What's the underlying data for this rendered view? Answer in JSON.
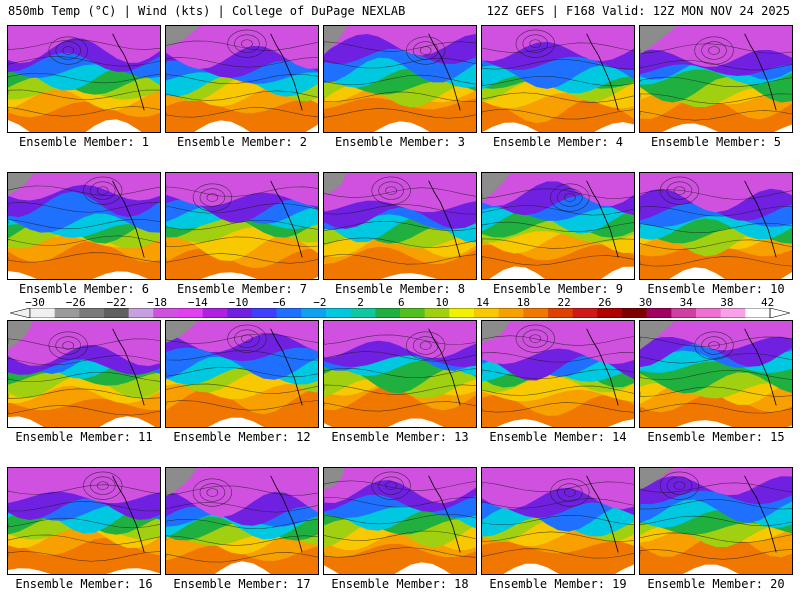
{
  "header": {
    "left_title": "850mb Temp (°C) | Wind (kts) | College of DuPage NEXLAB",
    "right_title": "12Z GEFS | F168 Valid: 12Z MON NOV 24 2025"
  },
  "panels": [
    {
      "label": "Ensemble Member: 1"
    },
    {
      "label": "Ensemble Member: 2"
    },
    {
      "label": "Ensemble Member: 3"
    },
    {
      "label": "Ensemble Member: 4"
    },
    {
      "label": "Ensemble Member: 5"
    },
    {
      "label": "Ensemble Member: 6"
    },
    {
      "label": "Ensemble Member: 7"
    },
    {
      "label": "Ensemble Member: 8"
    },
    {
      "label": "Ensemble Member: 9"
    },
    {
      "label": "Ensemble Member: 10"
    },
    {
      "label": "Ensemble Member: 11"
    },
    {
      "label": "Ensemble Member: 12"
    },
    {
      "label": "Ensemble Member: 13"
    },
    {
      "label": "Ensemble Member: 14"
    },
    {
      "label": "Ensemble Member: 15"
    },
    {
      "label": "Ensemble Member: 16"
    },
    {
      "label": "Ensemble Member: 17"
    },
    {
      "label": "Ensemble Member: 18"
    },
    {
      "label": "Ensemble Member: 19"
    },
    {
      "label": "Ensemble Member: 20"
    }
  ],
  "colorbar": {
    "labels": [
      "−30",
      "−26",
      "−22",
      "−18",
      "−14",
      "−10",
      "−6",
      "−2",
      "2",
      "6",
      "10",
      "14",
      "18",
      "22",
      "26",
      "30",
      "34",
      "38",
      "42"
    ],
    "colors": [
      "#f0f0f0",
      "#9a9a9a",
      "#7a7a7a",
      "#606060",
      "#c8a0e0",
      "#d050e0",
      "#e040f0",
      "#b020e0",
      "#7020e0",
      "#4040ff",
      "#2070ff",
      "#10a0f0",
      "#00c8e0",
      "#10c8a0",
      "#20b040",
      "#50c020",
      "#a0d010",
      "#f0f000",
      "#f8c800",
      "#f8a000",
      "#f07800",
      "#e04000",
      "#d01818",
      "#b00000",
      "#800000",
      "#a00060",
      "#d040a0",
      "#f070d0",
      "#f8a0e8",
      "#ffffff"
    ]
  }
}
